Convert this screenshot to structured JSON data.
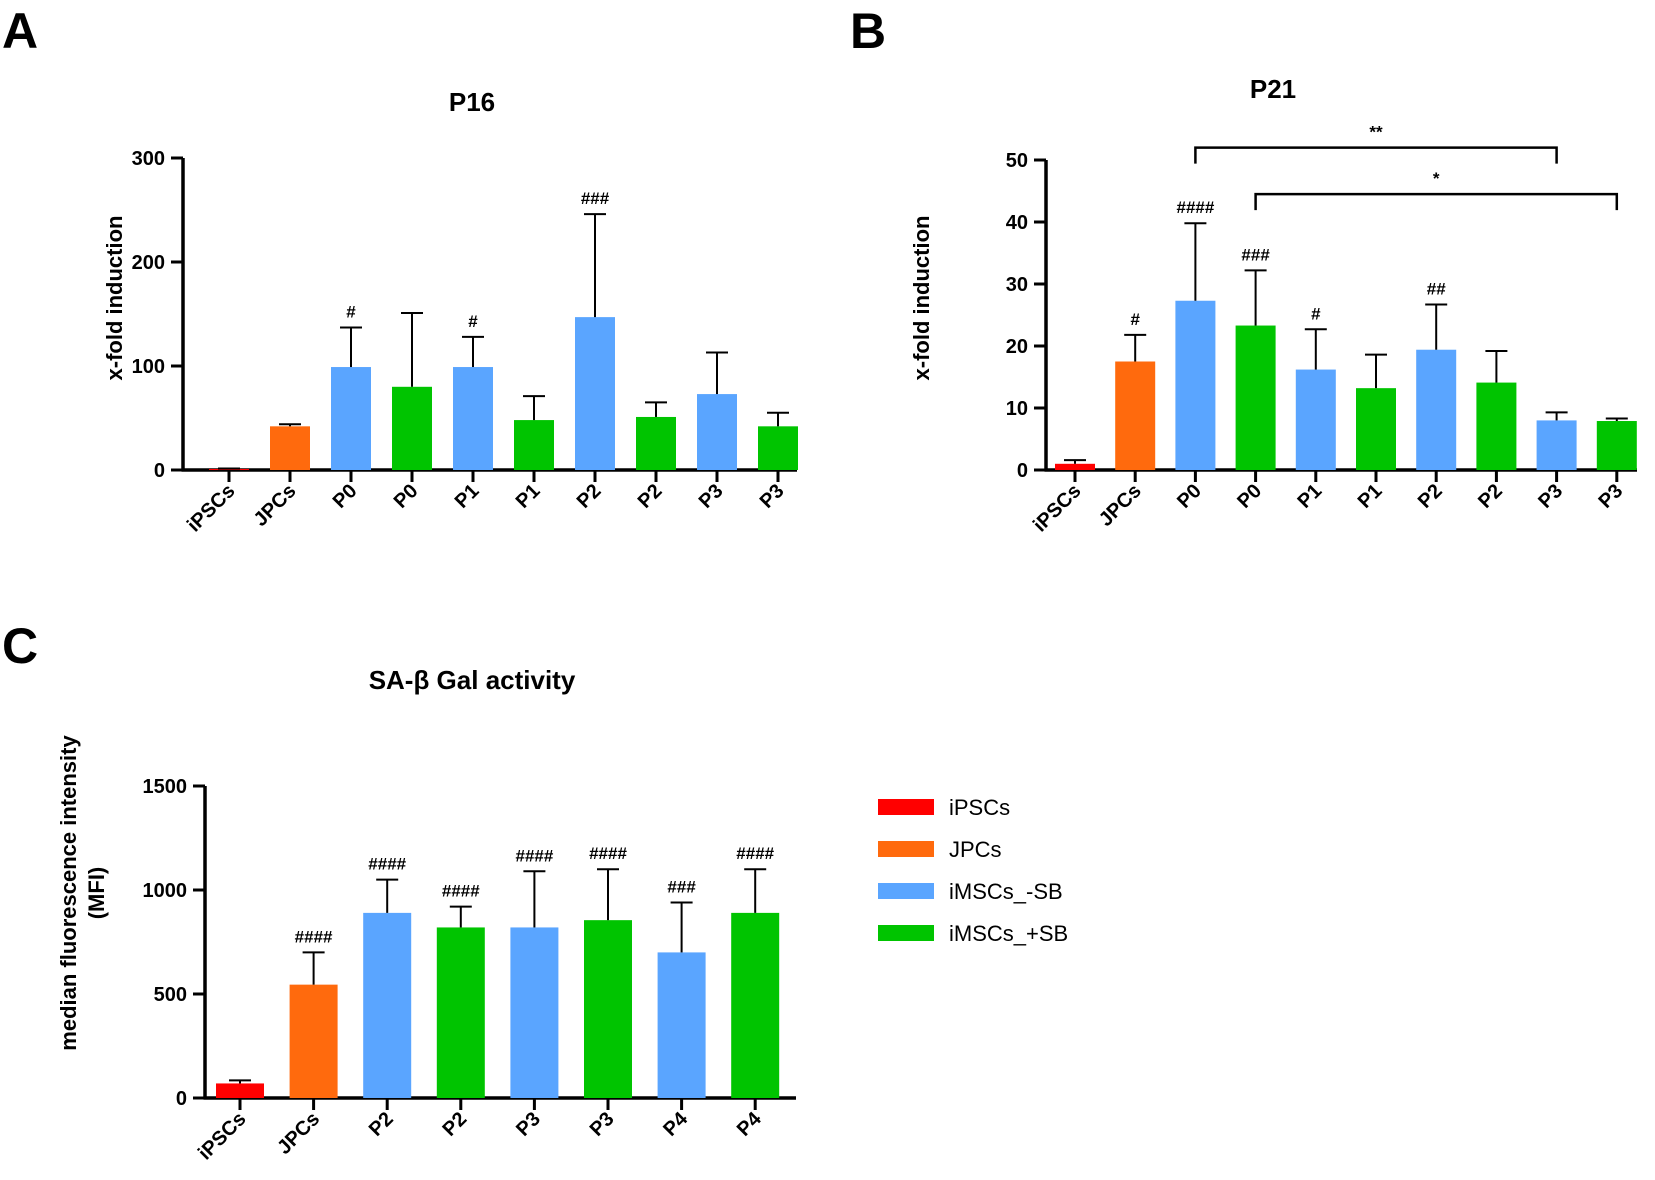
{
  "figure": {
    "colors": {
      "iPSCs": "#ff0000",
      "JPCs": "#ff6a0d",
      "iMSCs_-SB": "#5aa5ff",
      "iMSCs_+SB": "#00c400",
      "axis": "#000000"
    },
    "legend": {
      "entries": [
        {
          "label": "iPSCs",
          "color": "#ff0000"
        },
        {
          "label": "JPCs",
          "color": "#ff6a0d"
        },
        {
          "label": "iMSCs_-SB",
          "color": "#5aa5ff"
        },
        {
          "label": "iMSCs_+SB",
          "color": "#00c400"
        }
      ]
    }
  },
  "chart_data": [
    {
      "panel": "A",
      "type": "bar",
      "title": "P16",
      "ylabel": "x-fold induction",
      "xlabel": "",
      "ylim": [
        0,
        300
      ],
      "yticks": [
        0,
        100,
        200,
        300
      ],
      "categories": [
        "iPSCs",
        "JPCs",
        "P0",
        "P0",
        "P1",
        "P1",
        "P2",
        "P2",
        "P3",
        "P3"
      ],
      "groups": [
        "iPSCs",
        "JPCs",
        "iMSCs_-SB",
        "iMSCs_+SB",
        "iMSCs_-SB",
        "iMSCs_+SB",
        "iMSCs_-SB",
        "iMSCs_+SB",
        "iMSCs_-SB",
        "iMSCs_+SB"
      ],
      "values": [
        1,
        42,
        99,
        80,
        99,
        48,
        147,
        51,
        73,
        42
      ],
      "errors": [
        0.5,
        2,
        38,
        71,
        29,
        23,
        99,
        14,
        40,
        13
      ],
      "annotations": [
        "",
        "",
        "#",
        "",
        "#",
        "",
        "###",
        "",
        "",
        ""
      ],
      "brackets": []
    },
    {
      "panel": "B",
      "type": "bar",
      "title": "P21",
      "ylabel": "x-fold induction",
      "xlabel": "",
      "ylim": [
        0,
        50
      ],
      "yticks": [
        0,
        10,
        20,
        30,
        40,
        50
      ],
      "categories": [
        "iPSCs",
        "JPCs",
        "P0",
        "P0",
        "P1",
        "P1",
        "P2",
        "P2",
        "P3",
        "P3"
      ],
      "groups": [
        "iPSCs",
        "JPCs",
        "iMSCs_-SB",
        "iMSCs_+SB",
        "iMSCs_-SB",
        "iMSCs_+SB",
        "iMSCs_-SB",
        "iMSCs_+SB",
        "iMSCs_-SB",
        "iMSCs_+SB"
      ],
      "values": [
        1,
        17.5,
        27.3,
        23.3,
        16.2,
        13.2,
        19.4,
        14.1,
        8,
        7.9
      ],
      "errors": [
        0.6,
        4.3,
        12.5,
        8.9,
        6.5,
        5.4,
        7.3,
        5.1,
        1.3,
        0.4
      ],
      "annotations": [
        "",
        "#",
        "####",
        "###",
        "#",
        "",
        "##",
        "",
        "",
        ""
      ],
      "brackets": [
        {
          "from": 2,
          "to": 8,
          "label": "**",
          "y": 52
        },
        {
          "from": 3,
          "to": 9,
          "label": "*",
          "y": 44.5
        }
      ]
    },
    {
      "panel": "C",
      "type": "bar",
      "title": "SA-β Gal activity",
      "ylabel": "median fluorescence intensity (MFI)",
      "ylabel_lines": [
        "median fluorescence intensity",
        "(MFI)"
      ],
      "xlabel": "",
      "ylim": [
        0,
        1500
      ],
      "yticks": [
        0,
        500,
        1000,
        1500
      ],
      "categories": [
        "iPSCs",
        "JPCs",
        "P2",
        "P2",
        "P3",
        "P3",
        "P4",
        "P4"
      ],
      "groups": [
        "iPSCs",
        "JPCs",
        "iMSCs_-SB",
        "iMSCs_+SB",
        "iMSCs_-SB",
        "iMSCs_+SB",
        "iMSCs_-SB",
        "iMSCs_+SB"
      ],
      "values": [
        70,
        545,
        890,
        820,
        820,
        855,
        700,
        890
      ],
      "errors": [
        15,
        155,
        160,
        100,
        270,
        245,
        240,
        210
      ],
      "annotations": [
        "",
        "####",
        "####",
        "####",
        "####",
        "####",
        "###",
        "####"
      ],
      "brackets": []
    }
  ]
}
